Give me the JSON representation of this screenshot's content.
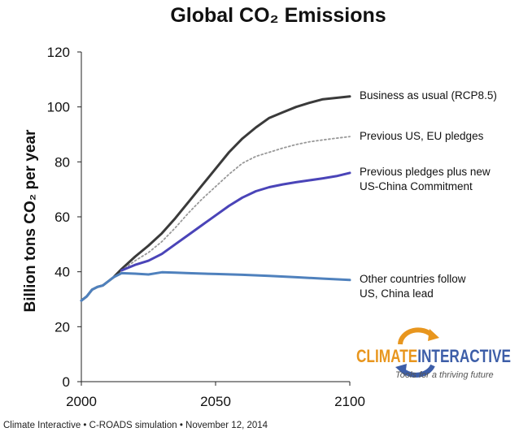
{
  "chart_data": {
    "type": "line",
    "title": "Global CO₂ Emissions",
    "ylabel": "Billion tons CO₂ per year",
    "xlabel": "",
    "xlim": [
      2000,
      2100
    ],
    "ylim": [
      0,
      120
    ],
    "x_ticks": [
      "2000",
      "2050",
      "2100"
    ],
    "y_ticks": [
      "0",
      "20",
      "40",
      "60",
      "80",
      "100",
      "120"
    ],
    "grid": false,
    "legend": "series labels at right end of lines",
    "series": [
      {
        "name": "Business as usual (RCP8.5)",
        "color": "#3a3a3a",
        "style": "solid",
        "x": [
          2000,
          2002,
          2004,
          2006,
          2008,
          2010,
          2012,
          2015,
          2020,
          2025,
          2030,
          2035,
          2040,
          2045,
          2050,
          2055,
          2060,
          2065,
          2070,
          2075,
          2080,
          2085,
          2090,
          2095,
          2100
        ],
        "y": [
          29.5,
          31,
          33.5,
          34.5,
          35,
          36.5,
          38,
          41,
          45.5,
          49.5,
          54,
          59.5,
          65.5,
          71.5,
          77.5,
          83.5,
          88.5,
          92.5,
          96,
          98,
          100,
          101.5,
          102.8,
          103.3,
          103.8
        ]
      },
      {
        "name": "Previous US, EU pledges",
        "color": "#999999",
        "style": "dotted",
        "x": [
          2015,
          2020,
          2025,
          2030,
          2035,
          2040,
          2045,
          2050,
          2055,
          2060,
          2065,
          2070,
          2075,
          2080,
          2085,
          2090,
          2095,
          2100
        ],
        "y": [
          40.5,
          44,
          47,
          51,
          56,
          61.5,
          66.5,
          71,
          75.5,
          79.5,
          82,
          83.5,
          85,
          86.3,
          87.3,
          88,
          88.6,
          89.2
        ]
      },
      {
        "name": "Previous pledges plus new US-China Commitment",
        "color": "#4a44b8",
        "style": "solid",
        "x": [
          2015,
          2020,
          2025,
          2030,
          2035,
          2040,
          2045,
          2050,
          2055,
          2060,
          2065,
          2070,
          2075,
          2080,
          2085,
          2090,
          2095,
          2100
        ],
        "y": [
          40.5,
          42.5,
          44,
          46.5,
          50,
          53.5,
          57,
          60.5,
          64,
          67,
          69.3,
          70.8,
          71.8,
          72.6,
          73.3,
          74,
          74.8,
          76
        ]
      },
      {
        "name": "Other countries follow US, China lead",
        "color": "#4f81bd",
        "style": "solid",
        "x": [
          2000,
          2002,
          2004,
          2006,
          2008,
          2010,
          2012,
          2015,
          2020,
          2025,
          2030,
          2035,
          2040,
          2050,
          2060,
          2070,
          2080,
          2090,
          2100
        ],
        "y": [
          29.5,
          31,
          33.5,
          34.5,
          35,
          36.5,
          38,
          39.5,
          39.3,
          39,
          39.8,
          39.7,
          39.5,
          39.2,
          38.9,
          38.5,
          38,
          37.5,
          37
        ]
      }
    ],
    "series_labels": [
      {
        "lines": [
          "Business as usual (RCP8.5)"
        ]
      },
      {
        "lines": [
          "Previous US, EU pledges"
        ]
      },
      {
        "lines": [
          "Previous pledges plus new",
          "US-China Commitment"
        ]
      },
      {
        "lines": [
          "Other countries follow",
          "US, China lead"
        ]
      }
    ]
  },
  "logo": {
    "name_part1": "CLIMATE",
    "name_part2": "INTERACTIVE",
    "tagline": "Tools for a thriving future",
    "colors": {
      "orange": "#e8961e",
      "blue": "#3d5ea8"
    }
  },
  "footer": "Climate Interactive • C-ROADS simulation • November 12, 2014"
}
